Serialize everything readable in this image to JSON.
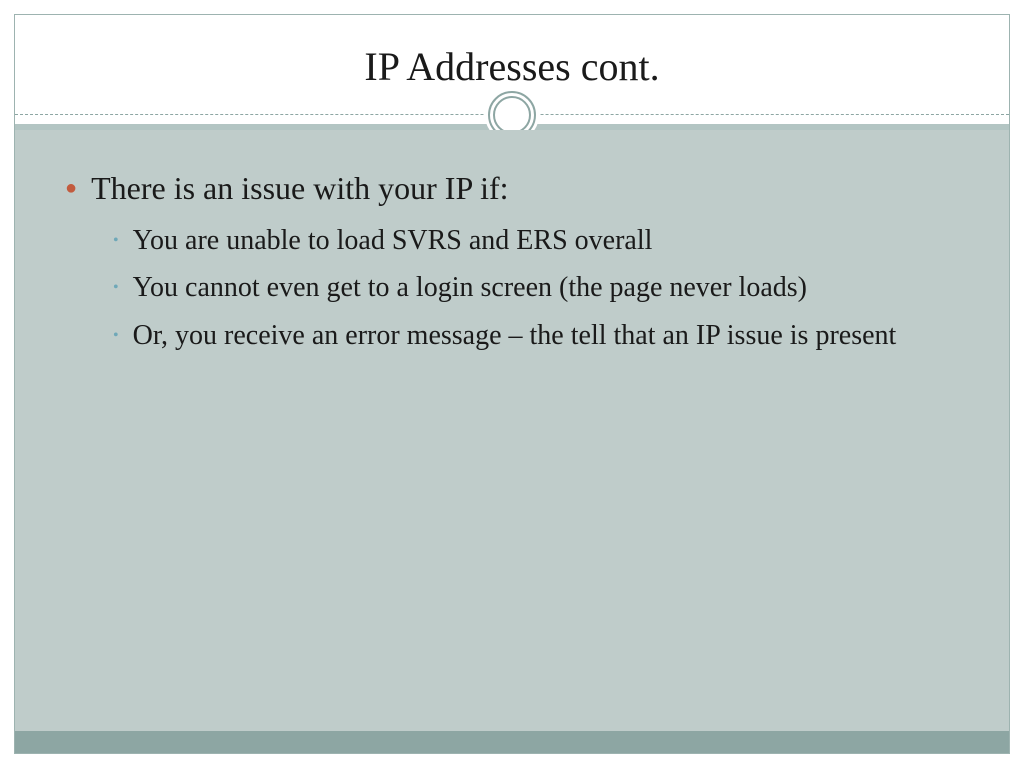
{
  "slide": {
    "title": "IP Addresses cont.",
    "mainBullet": "There is an issue with your IP if:",
    "subBullets": [
      "You are unable to load SVRS and ERS overall",
      "You cannot even get to a login screen (the page never loads)",
      "Or, you receive an error message – the tell that an IP issue is present"
    ]
  },
  "style": {
    "backgroundColor": "#ffffff",
    "contentBackgroundColor": "#bfccca",
    "footerBandColor": "#8da6a3",
    "borderColor": "#9db3b0",
    "titleFontSize": 40,
    "mainBulletFontSize": 32,
    "subBulletFontSize": 28,
    "mainBulletColor": "#c25b3e",
    "subBulletColor": "#6fa8b8",
    "textColor": "#1a1a1a",
    "dashedLineColor": "#8da6a3",
    "circleStrokeColor": "#8da6a3",
    "fontFamily": "Georgia, serif"
  }
}
